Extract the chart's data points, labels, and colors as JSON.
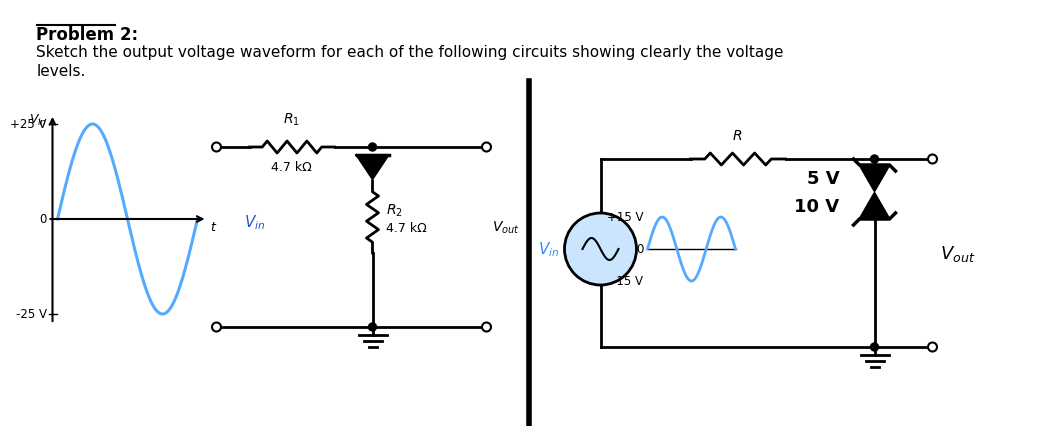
{
  "title_bold": "Problem 2:",
  "subtitle_line1": "Sketch the output voltage waveform for each of the following circuits showing clearly the voltage",
  "subtitle_line2": "levels.",
  "bg_color": "#ffffff",
  "circuit1": {
    "vin_label": "V_{in}",
    "plus25": "+25 V",
    "minus25": "-25 V",
    "zero": "0",
    "t_label": "t",
    "R1_label": "R_1",
    "R1_value": "4.7 kΩ",
    "R2_label": "R_2",
    "R2_value": "4.7 kΩ",
    "Vout_label": "V_{out}",
    "wave_color": "#55aaff",
    "wave_amplitude": 25
  },
  "circuit2": {
    "vin_label": "V_{in}",
    "plus15": "+15 V",
    "minus15": "-15 V",
    "zero": "0",
    "R_label": "R",
    "zener1_label": "5 V",
    "zener2_label": "10 V",
    "Vout_label": "V_{out}",
    "wave_color": "#55aaff",
    "circle_fill": "#cce5ff",
    "wave_amplitude": 15
  }
}
